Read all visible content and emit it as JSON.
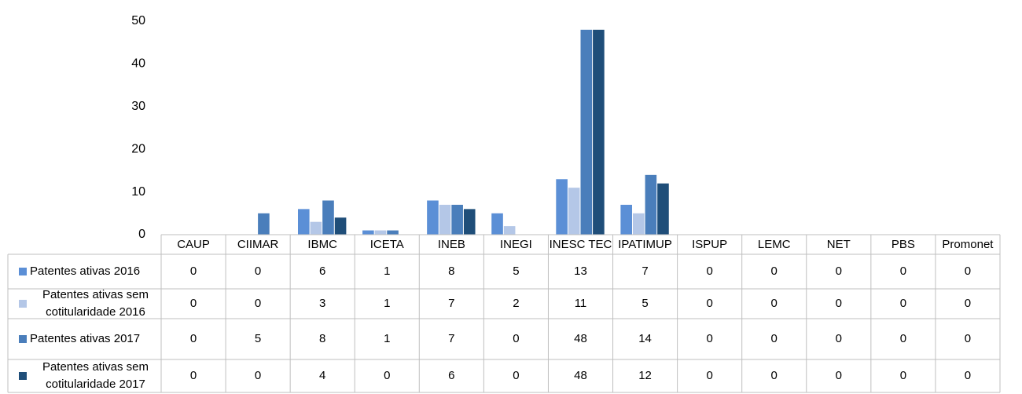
{
  "chart_data": {
    "type": "bar",
    "categories": [
      "CAUP",
      "CIIMAR",
      "IBMC",
      "ICETA",
      "INEB",
      "INEGI",
      "INESC TEC",
      "IPATIMUP",
      "ISPUP",
      "LEMC",
      "NET",
      "PBS",
      "Promonet"
    ],
    "series": [
      {
        "name": "Patentes ativas 2016",
        "color": "#5b8fd6",
        "values": [
          0,
          0,
          6,
          1,
          8,
          5,
          13,
          7,
          0,
          0,
          0,
          0,
          0
        ]
      },
      {
        "name": "Patentes ativas sem cotitularidade 2016",
        "color": "#b4c7e7",
        "values": [
          0,
          0,
          3,
          1,
          7,
          2,
          11,
          5,
          0,
          0,
          0,
          0,
          0
        ]
      },
      {
        "name": "Patentes ativas 2017",
        "color": "#4a7ebb",
        "values": [
          0,
          5,
          8,
          1,
          7,
          0,
          48,
          14,
          0,
          0,
          0,
          0,
          0
        ]
      },
      {
        "name": "Patentes ativas sem cotitularidade 2017",
        "color": "#1f4e79",
        "values": [
          0,
          0,
          4,
          0,
          6,
          0,
          48,
          12,
          0,
          0,
          0,
          0,
          0
        ]
      }
    ],
    "ylim": [
      0,
      50
    ],
    "yticks": [
      0,
      10,
      20,
      30,
      40,
      50
    ]
  }
}
